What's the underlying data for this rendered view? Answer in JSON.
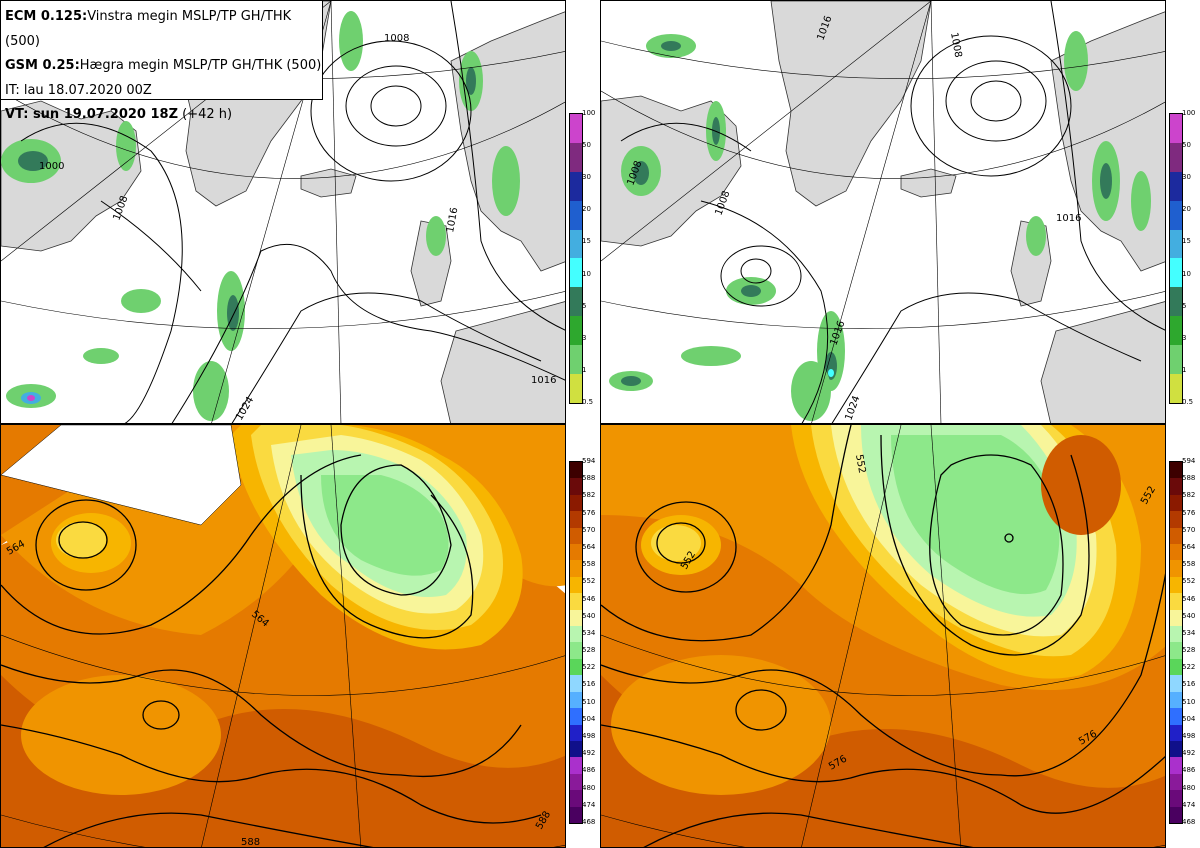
{
  "info": {
    "line1_bold": "ECM 0.125:",
    "line1_rest": "Vinstra megin MSLP/TP GH/THK (500)",
    "line2_bold": "GSM 0.25:",
    "line2_rest": "Hægra megin MSLP/TP GH/THK (500)",
    "line3": "IT: lau 18.07.2020 00Z",
    "line4_bold": "VT:  sun 19.07.2020 18Z",
    "line4_rest": " (+42 h)"
  },
  "precip_scale": {
    "labels": [
      "100",
      "50",
      "30",
      "20",
      "15",
      "10",
      "5",
      "3",
      "1",
      "0.5"
    ],
    "colors": [
      "#cc44cc",
      "#7f2a7f",
      "#1c2a9e",
      "#1f5fcf",
      "#43aee0",
      "#44ffff",
      "#337a5a",
      "#2ea82e",
      "#6fd06f",
      "#d0e040"
    ]
  },
  "thickness_scale": {
    "labels": [
      "594",
      "588",
      "582",
      "576",
      "570",
      "564",
      "558",
      "552",
      "546",
      "540",
      "534",
      "528",
      "522",
      "516",
      "510",
      "504",
      "498",
      "492",
      "486",
      "480",
      "474",
      "468"
    ],
    "colors": [
      "#3d0000",
      "#6a0a0a",
      "#8b1a00",
      "#b33a00",
      "#d05c00",
      "#e57a00",
      "#f09400",
      "#f7b500",
      "#fada40",
      "#f8f59a",
      "#b8f5b0",
      "#8de88a",
      "#5ad65a",
      "#8fd7ff",
      "#56b0ff",
      "#2f6fff",
      "#2020c8",
      "#10108a",
      "#aa30cc",
      "#8a1a9a",
      "#6a0a7a",
      "#4a0060"
    ]
  },
  "map_labels": {
    "tl": [
      "1008",
      "1000",
      "1008",
      "1016",
      "1024",
      "1016"
    ],
    "tr": [
      "1016",
      "1008",
      "1008",
      "1008",
      "1016",
      "1016",
      "1024"
    ],
    "bl": [
      "564",
      "564",
      "588",
      "588"
    ],
    "br": [
      "552",
      "552",
      "552",
      "576",
      "576"
    ]
  },
  "icons": {
    "map": "map-chart"
  }
}
